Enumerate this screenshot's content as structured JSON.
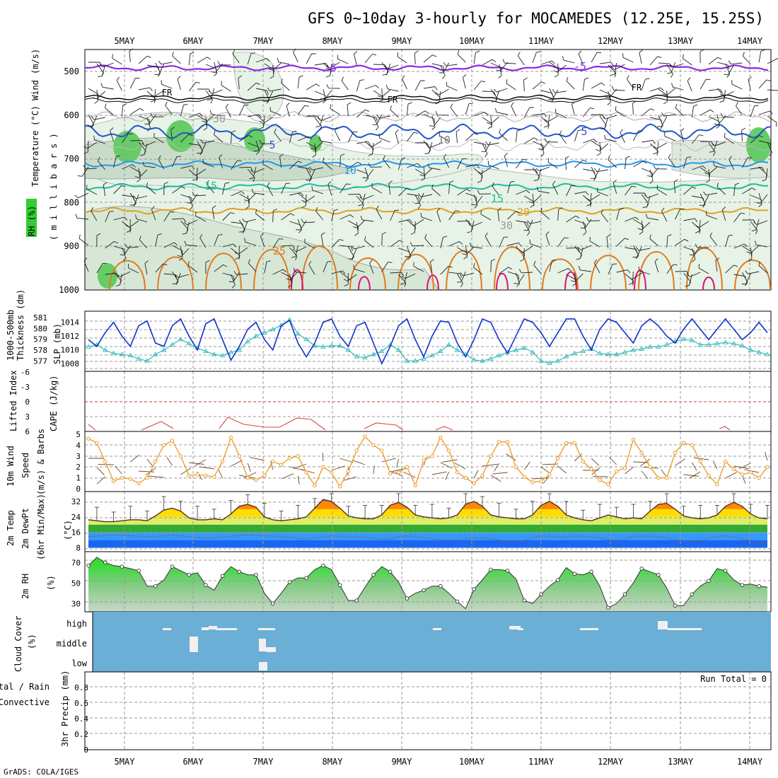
{
  "title": "GFS 0~10day 3-hourly for MOCAMEDES (12.25E, 15.25S)",
  "footer": "GrADS: COLA/IGES",
  "dates": [
    "5MAY",
    "6MAY",
    "7MAY",
    "8MAY",
    "9MAY",
    "10MAY",
    "11MAY",
    "12MAY",
    "13MAY",
    "14MAY"
  ],
  "colors": {
    "rh": "#33cc33",
    "temp": "#ff3300",
    "wind": "#000000",
    "thick": "#33bbbb",
    "slp": "#1133cc",
    "cape": "#aa66cc",
    "li": "#dd4444",
    "speed": "#ee9922",
    "cloud": "#6baed6",
    "rhfill": "#33cc33"
  },
  "panels": {
    "upper": {
      "labels": [
        {
          "text": "RH (%)",
          "color": "#000000"
        },
        {
          "text": "Temperature",
          "color": "#e25b2a"
        },
        {
          "text": "(°C)",
          "color": "#cc3333"
        },
        {
          "text": "Wind",
          "color": "#000000"
        },
        {
          "text": "(m/s)",
          "color": "#000000"
        }
      ],
      "unit_label": "( m i l l i b a r s )",
      "yticks": [
        "500",
        "600",
        "700",
        "800",
        "900",
        "1000"
      ],
      "contour_labels": [
        "-5",
        "-5",
        "FR",
        "FR",
        "FR",
        "5",
        "5",
        "10",
        "10",
        "15",
        "15",
        "20",
        "25",
        "30",
        "30",
        "10"
      ]
    },
    "thick": {
      "label1": "Thickness (dm)",
      "label1b": "1000-500mb",
      "label2": "SLP (mb)",
      "left_ticks": [
        "577",
        "578",
        "579",
        "580",
        "581"
      ],
      "right_ticks": [
        "1008",
        "1010",
        "1012",
        "1014"
      ]
    },
    "cape": {
      "label1": "Lifted Index",
      "label2": "CAPE (J/kg)",
      "yticks": [
        "-6",
        "-3",
        "0",
        "3",
        "6"
      ]
    },
    "wind10": {
      "label1": "10m Wind",
      "label2": "Speed",
      "label3": "(m/s) & Barbs",
      "yticks": [
        "0",
        "1",
        "2",
        "3",
        "4",
        "5"
      ]
    },
    "temp2": {
      "label1": "2m Temp",
      "label2": "2m DewPt",
      "label3": "(6hr Min/Max)",
      "label4": "(°C)",
      "yticks": [
        "8",
        "16",
        "24",
        "32"
      ]
    },
    "rh2": {
      "label1": "2m RH",
      "label2": "(%)",
      "yticks": [
        "30",
        "50",
        "70"
      ]
    },
    "cloud": {
      "label1": "Cloud Cover",
      "label2": "(%)",
      "levels": [
        "high",
        "middle",
        "low"
      ]
    },
    "precip": {
      "label1": "Total / Rain",
      "label2": "Convective",
      "label3": "3hr Precip (mm)",
      "yticks": [
        "0",
        "0.2",
        "0.4",
        "0.6",
        "0.8"
      ],
      "run_total": "Run Total = 0"
    }
  },
  "chart_data": [
    {
      "type": "line",
      "title": "",
      "xlabel": "",
      "ylabel": "SLP (mb)",
      "x_start": "4MAY 12Z",
      "x_step_hours": 3,
      "ylim": [
        1007,
        1015
      ],
      "series": [
        {
          "name": "SLP (mb)",
          "values": [
            1011.5,
            1010.5,
            1012.5,
            1014.0,
            1012.0,
            1010.5,
            1013.5,
            1014.2,
            1011.0,
            1010.5,
            1013.5,
            1014.5,
            1012.0,
            1010.0,
            1013.8,
            1014.5,
            1011.5,
            1008.5,
            1010.5,
            1013.0,
            1014.0,
            1011.5,
            1010.0,
            1013.5,
            1014.3,
            1011.0,
            1009.0,
            1011.0,
            1014.0,
            1014.5,
            1012.0,
            1010.5,
            1013.5,
            1014.0,
            1011.0,
            1008.0,
            1010.5,
            1013.5,
            1014.5,
            1011.5,
            1009.0,
            1012.0,
            1014.2,
            1014.0,
            1011.0,
            1009.0,
            1011.5,
            1014.5,
            1014.0,
            1011.5,
            1009.5,
            1012.0,
            1014.5,
            1014.0,
            1012.5,
            1010.5,
            1012.5,
            1014.5,
            1014.5,
            1012.0,
            1010.0,
            1013.0,
            1014.5,
            1014.0,
            1012.5,
            1011.0,
            1013.5,
            1014.5,
            1013.5,
            1012.0,
            1011.0,
            1013.0,
            1014.5,
            1013.0,
            1011.5,
            1013.0,
            1014.5,
            1013.0,
            1011.5,
            1012.5,
            1014.0,
            1012.5
          ]
        },
        {
          "name": "1000-500mb Thickness (dm)",
          "values": [
            578.3,
            578.5,
            578.0,
            577.7,
            577.6,
            577.5,
            577.2,
            577.0,
            577.6,
            578.0,
            578.5,
            579.0,
            578.6,
            578.2,
            577.9,
            577.6,
            577.5,
            577.8,
            578.0,
            578.8,
            579.3,
            579.6,
            579.9,
            580.3,
            580.8,
            579.5,
            579.0,
            578.4,
            578.3,
            578.4,
            578.4,
            578.0,
            577.4,
            577.3,
            577.6,
            577.9,
            578.5,
            578.0,
            577.0,
            577.0,
            577.2,
            577.5,
            577.9,
            578.5,
            578.0,
            577.6,
            577.1,
            577.0,
            577.2,
            577.5,
            577.8,
            578.0,
            578.2,
            577.8,
            577.0,
            576.8,
            577.0,
            577.4,
            577.7,
            577.9,
            578.1,
            577.7,
            577.6,
            577.6,
            577.8,
            578.0,
            578.1,
            578.3,
            578.3,
            578.5,
            578.8,
            579.0,
            578.9,
            578.5,
            578.5,
            578.6,
            578.7,
            578.6,
            578.4,
            578.0,
            577.8,
            577.6
          ]
        }
      ]
    },
    {
      "type": "line",
      "title": "",
      "xlabel": "",
      "ylabel": "(m/s) & Barbs",
      "x_start": "4MAY 12Z",
      "x_step_hours": 3,
      "ylim": [
        0,
        5
      ],
      "series": [
        {
          "name": "10m Wind Speed (m/s)",
          "values": [
            4.6,
            4.2,
            2.5,
            0.7,
            1.0,
            0.9,
            0.5,
            1.0,
            2.5,
            4.0,
            4.4,
            3.0,
            1.2,
            1.3,
            1.2,
            1.1,
            2.5,
            4.7,
            3.0,
            1.0,
            0.8,
            1.2,
            2.5,
            2.2,
            2.8,
            3.0,
            1.5,
            0.3,
            2.0,
            1.5,
            0.2,
            1.6,
            3.5,
            4.8,
            4.0,
            3.5,
            1.4,
            1.5,
            2.0,
            0.3,
            2.6,
            3.0,
            4.7,
            3.5,
            1.5,
            1.0,
            0.5,
            1.2,
            3.0,
            4.3,
            4.3,
            2.0,
            1.1,
            0.6,
            0.7,
            1.3,
            2.8,
            4.2,
            4.2,
            2.5,
            1.8,
            0.8,
            0.4,
            1.6,
            1.9,
            4.5,
            3.3,
            2.0,
            1.0,
            1.0,
            3.3,
            4.2,
            4.0,
            2.5,
            1.2,
            0.4,
            2.5,
            1.8,
            1.3,
            1.5,
            1.0,
            2.0
          ]
        }
      ]
    },
    {
      "type": "area",
      "title": "",
      "xlabel": "",
      "ylabel": "(°C)",
      "x_start": "4MAY 12Z",
      "x_step_hours": 3,
      "ylim": [
        8,
        36
      ],
      "series": [
        {
          "name": "2m Temp (°C)",
          "values": [
            22.5,
            22.0,
            21.5,
            21.5,
            22.0,
            22.5,
            22.5,
            22.0,
            24.5,
            27.5,
            28.5,
            27.0,
            23.5,
            22.5,
            22.5,
            23.0,
            22.5,
            25.5,
            29.5,
            30.5,
            29.0,
            24.0,
            22.5,
            22.0,
            22.5,
            23.0,
            24.0,
            28.5,
            33.0,
            32.0,
            28.5,
            24.5,
            23.5,
            23.0,
            23.0,
            25.0,
            30.0,
            31.5,
            29.0,
            25.0,
            24.0,
            23.5,
            23.0,
            23.5,
            25.0,
            30.5,
            32.0,
            29.5,
            25.0,
            24.0,
            23.5,
            23.0,
            23.0,
            25.0,
            30.0,
            32.0,
            29.5,
            25.0,
            23.5,
            22.5,
            22.0,
            23.5,
            25.0,
            24.0,
            23.0,
            23.5,
            23.0,
            27.0,
            30.5,
            31.0,
            28.0,
            24.5,
            23.5,
            23.0,
            23.5,
            25.0,
            29.5,
            31.5,
            29.5,
            25.5,
            23.5,
            23.0
          ]
        },
        {
          "name": "2m DewPt (°C)",
          "values": [
            13.8,
            14.0,
            14.3,
            14.6,
            14.5,
            14.2,
            14.0,
            13.8,
            13.8,
            14.2,
            14.5,
            14.2,
            13.8,
            13.3,
            13.0,
            13.0,
            13.5,
            14.0,
            14.5,
            14.6,
            14.4,
            14.2,
            14.0,
            13.8,
            13.4,
            12.8,
            12.6,
            13.0,
            13.6,
            14.2,
            14.0,
            13.6,
            13.6,
            13.4,
            13.0,
            12.2,
            12.6,
            13.6,
            14.2,
            13.8,
            13.0,
            12.6,
            12.2,
            12.0,
            12.0,
            12.6,
            13.0,
            13.2,
            12.6,
            12.0,
            11.0,
            11.0,
            11.8,
            13.2,
            14.0,
            14.0,
            13.6,
            13.6,
            14.0,
            14.0,
            13.6,
            13.0,
            12.2,
            11.8,
            12.6,
            13.8,
            14.0,
            14.0,
            13.6,
            13.0,
            12.2,
            11.2,
            11.0,
            11.6,
            13.0,
            13.8,
            14.2,
            13.6,
            12.6,
            11.8,
            11.0,
            10.6
          ]
        }
      ]
    },
    {
      "type": "area",
      "title": "",
      "xlabel": "",
      "ylabel": "(%)",
      "x_start": "4MAY 12Z",
      "x_step_hours": 3,
      "ylim": [
        22,
        75
      ],
      "series": [
        {
          "name": "2m RH (%)",
          "values": [
            67,
            75,
            70,
            67,
            66,
            64,
            62,
            47,
            47,
            53,
            66,
            62,
            58,
            60,
            48,
            43,
            57,
            66,
            61,
            58,
            58,
            40,
            30,
            40,
            51,
            55,
            55,
            63,
            67,
            63,
            48,
            33,
            33,
            46,
            58,
            66,
            61,
            51,
            35,
            40,
            43,
            47,
            47,
            40,
            32,
            25,
            44,
            53,
            63,
            63,
            62,
            54,
            33,
            30,
            39,
            47,
            53,
            65,
            59,
            58,
            61,
            47,
            26,
            30,
            39,
            50,
            64,
            61,
            58,
            45,
            28,
            28,
            39,
            47,
            52,
            64,
            62,
            53,
            48,
            49,
            47,
            46
          ]
        }
      ]
    },
    {
      "type": "bar",
      "title": "",
      "xlabel": "",
      "ylabel": "3hr Precip (mm)",
      "x_start": "4MAY 12Z",
      "x_step_hours": 3,
      "ylim": [
        0,
        1
      ],
      "series": [
        {
          "name": "Total / Rain",
          "values": []
        },
        {
          "name": "Convective",
          "values": []
        }
      ]
    }
  ]
}
